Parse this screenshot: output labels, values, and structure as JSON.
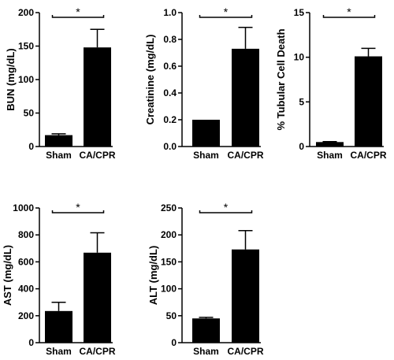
{
  "chart_data": [
    {
      "type": "bar",
      "ylabel": "BUN (mg/dL)",
      "categories": [
        "Sham",
        "CA/CPR"
      ],
      "values": [
        17,
        148
      ],
      "errors": [
        2,
        27
      ],
      "ylim": [
        0,
        200
      ],
      "yticks": [
        0,
        50,
        100,
        150,
        200
      ],
      "significance": "*"
    },
    {
      "type": "bar",
      "ylabel": "Creatinine (mg/dL)",
      "categories": [
        "Sham",
        "CA/CPR"
      ],
      "values": [
        0.2,
        0.73
      ],
      "errors": [
        0,
        0.16
      ],
      "ylim": [
        0,
        1.0
      ],
      "yticks": [
        0.0,
        0.2,
        0.4,
        0.6,
        0.8,
        1.0
      ],
      "yticklabels": [
        "0.0",
        "0.2",
        "0.4",
        "0.6",
        "0.8",
        "1.0"
      ],
      "significance": "*"
    },
    {
      "type": "bar",
      "ylabel": "% Tubular Cell Death",
      "categories": [
        "Sham",
        "CA/CPR"
      ],
      "values": [
        0.5,
        10.1
      ],
      "errors": [
        0.05,
        0.9
      ],
      "ylim": [
        0,
        15
      ],
      "yticks": [
        0,
        5,
        10,
        15
      ],
      "significance": "*"
    },
    {
      "type": "bar",
      "ylabel": "AST (mg/dL)",
      "categories": [
        "Sham",
        "CA/CPR"
      ],
      "values": [
        235,
        668
      ],
      "errors": [
        65,
        148
      ],
      "ylim": [
        0,
        1000
      ],
      "yticks": [
        0,
        200,
        400,
        600,
        800,
        1000
      ],
      "significance": "*"
    },
    {
      "type": "bar",
      "ylabel": "ALT (mg/dL)",
      "categories": [
        "Sham",
        "CA/CPR"
      ],
      "values": [
        45,
        173
      ],
      "errors": [
        2,
        35
      ],
      "ylim": [
        0,
        250
      ],
      "yticks": [
        0,
        50,
        100,
        150,
        200,
        250
      ],
      "significance": "*"
    }
  ]
}
